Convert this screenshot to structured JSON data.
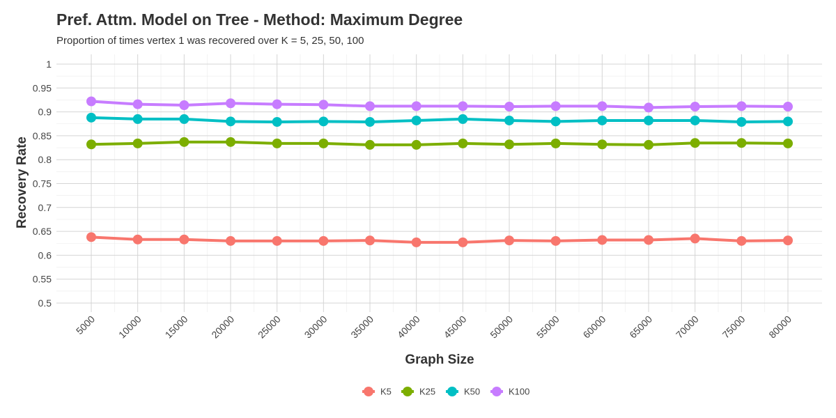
{
  "chart_data": {
    "type": "line",
    "title": "Pref. Attm. Model on Tree - Method: Maximum Degree",
    "subtitle": "Proportion of times vertex 1 was recovered over K = 5, 25, 50, 100",
    "xlabel": "Graph Size",
    "ylabel": "Recovery Rate",
    "x": [
      5000,
      10000,
      15000,
      20000,
      25000,
      30000,
      35000,
      40000,
      45000,
      50000,
      55000,
      60000,
      65000,
      70000,
      75000,
      80000
    ],
    "x_tick_labels": [
      "5000",
      "10000",
      "15000",
      "20000",
      "25000",
      "30000",
      "35000",
      "40000",
      "45000",
      "50000",
      "55000",
      "60000",
      "65000",
      "70000",
      "75000",
      "80000"
    ],
    "ylim": [
      0.5,
      1.0
    ],
    "y_ticks": [
      0.5,
      0.55,
      0.6,
      0.65,
      0.7,
      0.75,
      0.8,
      0.85,
      0.9,
      0.95,
      1.0
    ],
    "y_tick_labels": [
      "0.5",
      "0.55",
      "0.6",
      "0.65",
      "0.7",
      "0.75",
      "0.8",
      "0.85",
      "0.9",
      "0.95",
      "1"
    ],
    "grid": true,
    "legend_position": "bottom",
    "series": [
      {
        "name": "K5",
        "color": "#F8766D",
        "values": [
          0.638,
          0.633,
          0.633,
          0.63,
          0.63,
          0.63,
          0.631,
          0.627,
          0.627,
          0.631,
          0.63,
          0.632,
          0.632,
          0.635,
          0.63,
          0.631
        ]
      },
      {
        "name": "K25",
        "color": "#7CAE00",
        "values": [
          0.832,
          0.834,
          0.837,
          0.837,
          0.834,
          0.834,
          0.831,
          0.831,
          0.834,
          0.832,
          0.834,
          0.832,
          0.831,
          0.835,
          0.835,
          0.834
        ]
      },
      {
        "name": "K50",
        "color": "#00BFC4",
        "values": [
          0.888,
          0.885,
          0.885,
          0.88,
          0.879,
          0.88,
          0.879,
          0.882,
          0.885,
          0.882,
          0.88,
          0.882,
          0.882,
          0.882,
          0.879,
          0.88
        ]
      },
      {
        "name": "K100",
        "color": "#C77CFF",
        "values": [
          0.922,
          0.916,
          0.914,
          0.918,
          0.916,
          0.915,
          0.912,
          0.912,
          0.912,
          0.911,
          0.912,
          0.912,
          0.909,
          0.911,
          0.912,
          0.911
        ]
      }
    ]
  }
}
